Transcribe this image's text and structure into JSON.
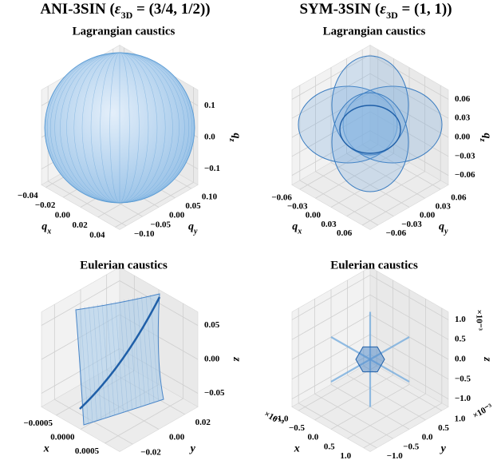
{
  "columns": [
    {
      "name": "ANI-3SIN (",
      "symbol": "ε",
      "sub": "3D",
      "rest": " = (3/4, 1/2))"
    },
    {
      "name": "SYM-3SIN (",
      "symbol": "ε",
      "sub": "3D",
      "rest": " = (1, 1))"
    }
  ],
  "chart_data": [
    {
      "type": "surface3d",
      "title": "Lagrangian caustics",
      "xlabel": {
        "text": "q",
        "sub": "x"
      },
      "ylabel": {
        "text": "q",
        "sub": "y"
      },
      "zlabel": {
        "text": "q",
        "sub": "z"
      },
      "xlim": [
        -0.045,
        0.045
      ],
      "xticks": [
        {
          "value": -0.04,
          "label": "−0.04"
        },
        {
          "value": -0.02,
          "label": "−0.02"
        },
        {
          "value": 0,
          "label": "0.00"
        },
        0.02,
        0.04
      ],
      "ylim": [
        -0.12,
        0.12
      ],
      "yticks": [
        {
          "value": -0.1,
          "label": "−0.10"
        },
        {
          "value": -0.05,
          "label": "−0.05"
        },
        {
          "value": 0,
          "label": "0.00"
        },
        0.05,
        {
          "value": 0.1,
          "label": "0.10"
        }
      ],
      "zlim": [
        -0.15,
        0.15
      ],
      "zticks": [
        {
          "value": -0.1,
          "label": "−0.1"
        },
        {
          "value": 0,
          "label": "0.0"
        },
        0.1
      ],
      "color": "#5b9bd5"
    },
    {
      "type": "surface3d",
      "title": "Lagrangian caustics",
      "xlabel": {
        "text": "q",
        "sub": "x"
      },
      "ylabel": {
        "text": "q",
        "sub": "y"
      },
      "zlabel": {
        "text": "q",
        "sub": "z"
      },
      "xlim": [
        -0.075,
        0.075
      ],
      "xticks": [
        {
          "value": -0.06,
          "label": "−0.06"
        },
        {
          "value": -0.03,
          "label": "−0.03"
        },
        {
          "value": 0,
          "label": "0.00"
        },
        0.03,
        0.06
      ],
      "ylim": [
        -0.075,
        0.075
      ],
      "yticks": [
        {
          "value": -0.06,
          "label": "−0.06"
        },
        {
          "value": -0.03,
          "label": "−0.03"
        },
        {
          "value": 0,
          "label": "0.00"
        },
        0.03,
        0.06
      ],
      "zlim": [
        -0.075,
        0.075
      ],
      "zticks": [
        {
          "value": -0.06,
          "label": "−0.06"
        },
        {
          "value": -0.03,
          "label": "−0.03"
        },
        {
          "value": 0,
          "label": "0.00"
        },
        0.03,
        0.06
      ],
      "color": "#3a7cc0"
    },
    {
      "type": "surface3d",
      "title": "Eulerian caustics",
      "xlabel": "x",
      "ylabel": "y",
      "zlabel": "z",
      "xlim": [
        -0.0008,
        0.0008
      ],
      "xticks": [
        {
          "value": -0.0005,
          "label": "−0.0005"
        },
        {
          "value": 0,
          "label": "0.0000"
        },
        0.0005
      ],
      "ylim": [
        -0.03,
        0.03
      ],
      "yticks": [
        {
          "value": -0.02,
          "label": "−0.02"
        },
        {
          "value": 0,
          "label": "0.00"
        },
        0.02
      ],
      "zlim": [
        -0.07,
        0.07
      ],
      "zticks": [
        {
          "value": -0.05,
          "label": "−0.05"
        },
        {
          "value": 0,
          "label": "0.00"
        },
        0.05
      ],
      "color": "#4a86c8"
    },
    {
      "type": "surface3d",
      "title": "Eulerian caustics",
      "xlabel": "x",
      "ylabel": "y",
      "zlabel": "z",
      "xoffset": "×10⁻³",
      "yoffset": "×10⁻³",
      "zoffset": "×10⁻³",
      "xlim": [
        -1.2,
        1.2
      ],
      "xticks": [
        {
          "value": -1,
          "label": "−1.0"
        },
        {
          "value": -0.5,
          "label": "−0.5"
        },
        {
          "value": 0,
          "label": "0.0"
        },
        0.5,
        {
          "value": 1,
          "label": "1.0"
        }
      ],
      "ylim": [
        -1.2,
        1.2
      ],
      "yticks": [
        {
          "value": -1,
          "label": "−1.0"
        },
        {
          "value": -0.5,
          "label": "−0.5"
        },
        {
          "value": 0,
          "label": "0.0"
        },
        0.5,
        {
          "value": 1,
          "label": "1.0"
        }
      ],
      "zlim": [
        -1.2,
        1.2
      ],
      "zticks": [
        {
          "value": -1,
          "label": "−1.0"
        },
        {
          "value": -0.5,
          "label": "−0.5"
        },
        {
          "value": 0,
          "label": "0.0"
        },
        0.5,
        {
          "value": 1,
          "label": "1.0"
        }
      ],
      "color": "#6fa8dc"
    }
  ]
}
